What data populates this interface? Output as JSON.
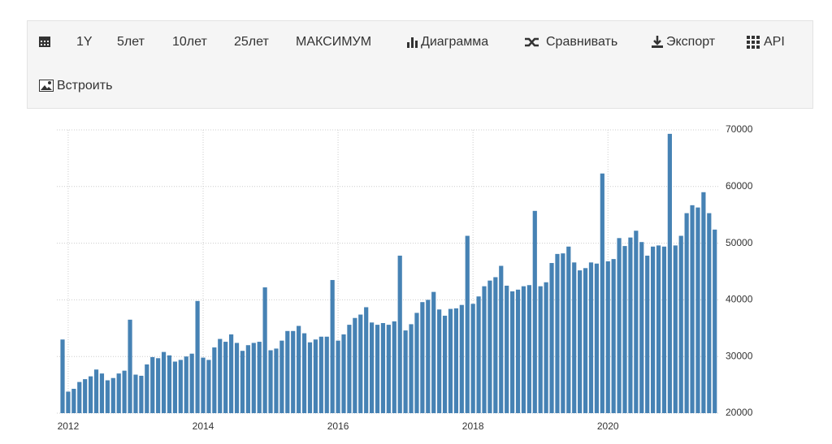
{
  "toolbar": {
    "items": [
      "1Y",
      "5лет",
      "10лет",
      "25лет",
      "МАКСИМУМ",
      "Диаграмма",
      "Сравнивать",
      "Экспорт",
      "API",
      "Встроить"
    ]
  },
  "chart_data": {
    "type": "bar",
    "color": "#4682b4",
    "grid": true,
    "y_axis_side": "right",
    "categories": [
      null,
      "2012",
      null,
      null,
      null,
      null,
      null,
      null,
      null,
      null,
      null,
      null,
      null,
      null,
      null,
      null,
      null,
      null,
      null,
      null,
      null,
      null,
      null,
      null,
      null,
      "2014",
      null,
      null,
      null,
      null,
      null,
      null,
      null,
      null,
      null,
      null,
      null,
      null,
      null,
      null,
      null,
      null,
      null,
      null,
      null,
      null,
      null,
      null,
      null,
      "2016",
      null,
      null,
      null,
      null,
      null,
      null,
      null,
      null,
      null,
      null,
      null,
      null,
      null,
      null,
      null,
      null,
      null,
      null,
      null,
      null,
      null,
      null,
      null,
      "2018",
      null,
      null,
      null,
      null,
      null,
      null,
      null,
      null,
      null,
      null,
      null,
      null,
      null,
      null,
      null,
      null,
      null,
      null,
      null,
      null,
      null,
      null,
      null,
      "2020",
      null,
      null,
      null,
      null,
      null,
      null,
      null,
      null,
      null,
      null,
      null,
      null,
      null,
      null,
      null,
      null,
      null,
      null,
      null
    ],
    "values": [
      33000,
      23800,
      24300,
      25500,
      26000,
      26500,
      27700,
      27000,
      25800,
      26200,
      27000,
      27500,
      36500,
      26800,
      26600,
      28600,
      29900,
      29700,
      30800,
      30200,
      29100,
      29400,
      30000,
      30500,
      39800,
      29800,
      29400,
      31600,
      33100,
      32600,
      33900,
      32400,
      31000,
      32000,
      32400,
      32600,
      42200,
      31100,
      31400,
      32800,
      34500,
      34500,
      35400,
      34100,
      32500,
      33000,
      33500,
      33500,
      43500,
      32800,
      33900,
      35600,
      36800,
      37400,
      38700,
      36000,
      35600,
      35900,
      35600,
      36200,
      47800,
      34600,
      35700,
      37700,
      39600,
      40000,
      41400,
      38300,
      37200,
      38400,
      38500,
      39100,
      51300,
      39300,
      40600,
      42400,
      43400,
      44000,
      46000,
      42500,
      41500,
      41800,
      42400,
      42600,
      55700,
      42400,
      43100,
      46500,
      48100,
      48200,
      49400,
      46600,
      45200,
      45600,
      46600,
      46400,
      62300,
      46800,
      47200,
      50900,
      49500,
      51000,
      52200,
      50200,
      47800,
      49400,
      49600,
      49400,
      69300,
      49600,
      51300,
      55300,
      56700,
      56300,
      59000,
      55300,
      52400
    ],
    "ylim": [
      20000,
      70000
    ],
    "yticks": [
      20000,
      30000,
      40000,
      50000,
      60000,
      70000
    ]
  }
}
